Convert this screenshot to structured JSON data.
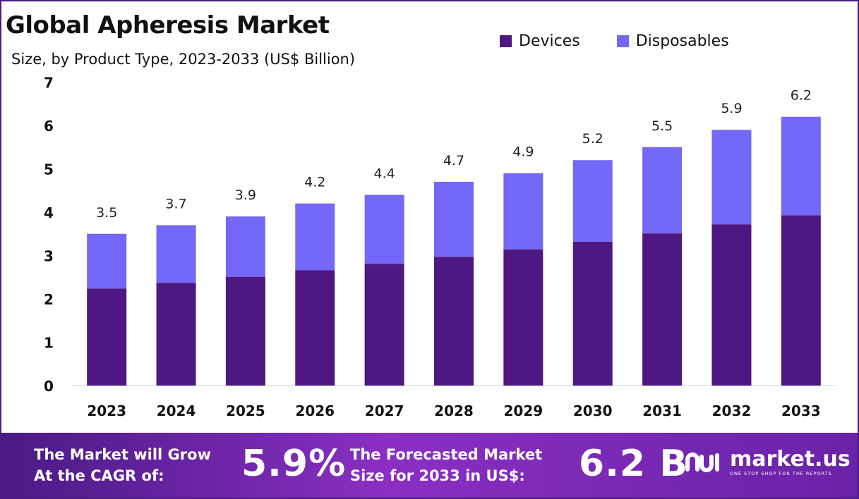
{
  "title": "Global Apheresis Market",
  "subtitle": "Size, by Product Type, 2023-2033 (US$ Billion)",
  "colors": {
    "devices": "#4e1781",
    "disposables": "#7468f8",
    "border": "#4a1a85"
  },
  "chart_data": {
    "type": "bar",
    "stacked": true,
    "categories": [
      "2023",
      "2024",
      "2025",
      "2026",
      "2027",
      "2028",
      "2029",
      "2030",
      "2031",
      "2032",
      "2033"
    ],
    "series": [
      {
        "name": "Devices",
        "values": [
          2.24,
          2.37,
          2.51,
          2.66,
          2.81,
          2.97,
          3.14,
          3.32,
          3.51,
          3.72,
          3.93
        ]
      },
      {
        "name": "Disposables",
        "values": [
          1.26,
          1.33,
          1.39,
          1.54,
          1.59,
          1.73,
          1.76,
          1.88,
          1.99,
          2.18,
          2.27
        ]
      }
    ],
    "totals": [
      "3.5",
      "3.7",
      "3.9",
      "4.2",
      "4.4",
      "4.7",
      "4.9",
      "5.2",
      "5.5",
      "5.9",
      "6.2"
    ],
    "yticks": [
      "0",
      "1",
      "2",
      "3",
      "4",
      "5",
      "6",
      "7"
    ],
    "ylim": [
      0,
      7
    ],
    "xlabel": "",
    "ylabel": "",
    "grid": false,
    "legend_position": "top-right"
  },
  "legend": {
    "devices": "Devices",
    "disposables": "Disposables"
  },
  "footer": {
    "cagr_label_line1": "The Market will Grow",
    "cagr_label_line2": "At the CAGR of:",
    "cagr_value": "5.9%",
    "forecast_label_line1": "The Forecasted Market",
    "forecast_label_line2": "Size for 2033 in US$:",
    "forecast_value": "6.2 B",
    "brand_name": "market.us",
    "brand_tagline": "ONE STOP SHOP FOR THE REPORTS"
  }
}
